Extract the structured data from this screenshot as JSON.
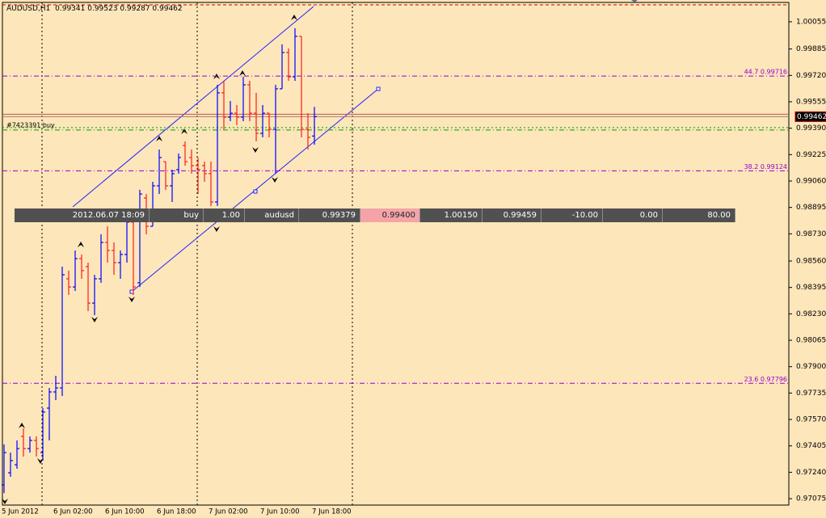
{
  "chart_data": {
    "type": "ohlc",
    "symbol": "AUDUSD,H1",
    "categories": [
      "5 Jun 2012",
      null,
      null,
      null,
      null,
      null,
      null,
      null,
      "6 Jun 02:00",
      null,
      null,
      null,
      null,
      null,
      null,
      null,
      "6 Jun 10:00",
      null,
      null,
      null,
      null,
      null,
      null,
      null,
      "6 Jun 18:00",
      null,
      null,
      null,
      null,
      null,
      null,
      null,
      "7 Jun 02:00",
      null,
      null,
      null,
      null,
      null,
      null,
      null,
      "7 Jun 10:00",
      null,
      null,
      null,
      null,
      null,
      null,
      null,
      "7 Jun 18:00"
    ],
    "open": [
      0.97161,
      0.97237,
      0.97287,
      0.97464,
      0.97388,
      0.97439,
      0.97363,
      0.97641,
      0.97742,
      0.97767,
      0.98449,
      0.98398,
      0.98575,
      0.98525,
      0.98297,
      0.98449,
      0.98676,
      0.98626,
      0.9855,
      0.98601,
      0.98803,
      0.98424,
      0.98954,
      0.98777,
      0.9903,
      0.99181,
      0.9903,
      0.99131,
      0.99282,
      0.99207,
      0.99156,
      0.99156,
      0.99106,
      0.98929,
      0.99611,
      0.99459,
      0.99484,
      0.99459,
      0.99661,
      0.99484,
      0.99358,
      0.99484,
      0.99383,
      0.99636,
      0.99863,
      0.99711,
      0.99964,
      0.99383,
      0.99341
    ],
    "high": [
      0.97414,
      0.97363,
      0.97439,
      0.97515,
      0.97464,
      0.97464,
      0.97641,
      0.97767,
      0.97843,
      0.98525,
      0.985,
      0.98626,
      0.98601,
      0.9855,
      0.98474,
      0.98727,
      0.98777,
      0.98676,
      0.98626,
      0.98828,
      0.98853,
      0.99005,
      0.98979,
      0.99055,
      0.99257,
      0.99181,
      0.99131,
      0.99232,
      0.99308,
      0.99257,
      0.99207,
      0.99181,
      0.99181,
      0.99661,
      0.99686,
      0.9956,
      0.99535,
      0.99711,
      0.99686,
      0.99611,
      0.99535,
      0.99484,
      0.99661,
      0.99914,
      0.99888,
      1.00015,
      0.99964,
      0.99484,
      0.99523
    ],
    "low": [
      0.9711,
      0.97212,
      0.97262,
      0.97338,
      0.97363,
      0.97338,
      0.97313,
      0.97439,
      0.97691,
      0.97717,
      0.98348,
      0.98373,
      0.98449,
      0.98247,
      0.98222,
      0.98424,
      0.9855,
      0.98474,
      0.98449,
      0.9855,
      0.98348,
      0.98398,
      0.98727,
      0.98777,
      0.98979,
      0.99005,
      0.98929,
      0.99106,
      0.99156,
      0.99106,
      0.98979,
      0.99055,
      0.98904,
      0.98904,
      0.99383,
      0.99434,
      0.99409,
      0.99434,
      0.99434,
      0.99308,
      0.99333,
      0.99333,
      0.99106,
      0.99636,
      0.99686,
      0.99686,
      0.99333,
      0.99257,
      0.99287
    ],
    "close": [
      0.97363,
      0.97313,
      0.97388,
      0.97388,
      0.97439,
      0.97388,
      0.97616,
      0.97742,
      0.97767,
      0.98474,
      0.98398,
      0.98575,
      0.985,
      0.98297,
      0.98449,
      0.98676,
      0.98626,
      0.9855,
      0.98601,
      0.98803,
      0.98398,
      0.98979,
      0.98777,
      0.9903,
      0.99207,
      0.9903,
      0.99106,
      0.99207,
      0.99181,
      0.99156,
      0.99131,
      0.99106,
      0.98929,
      0.99611,
      0.99459,
      0.99484,
      0.99459,
      0.99661,
      0.99484,
      0.99358,
      0.99484,
      0.99383,
      0.99636,
      0.99863,
      0.99711,
      0.99964,
      0.99383,
      0.99333,
      0.99462
    ],
    "bull_color": "#0000ff",
    "bear_color": "#ff1a1a",
    "ylim": [
      0.97035,
      1.00176
    ],
    "yticks": [
      1.00055,
      0.99885,
      {
        "value": 0.9972,
        "label": "0.99720"
      },
      0.99555,
      {
        "value": 0.9939,
        "label": "0.99390"
      },
      0.99225,
      {
        "value": 0.9906,
        "label": "0.99060"
      },
      0.98895,
      {
        "value": 0.9873,
        "label": "0.98730"
      },
      {
        "value": 0.9856,
        "label": "0.98560"
      },
      0.98395,
      {
        "value": 0.9823,
        "label": "0.98230"
      },
      0.98065,
      {
        "value": 0.979,
        "label": "0.97900"
      },
      0.97735,
      {
        "value": 0.9757,
        "label": "0.97570"
      },
      0.97405,
      {
        "value": 0.9724,
        "label": "0.97240"
      },
      0.97075
    ],
    "fib_levels": [
      {
        "value": 0.99716,
        "label": "44.7 0.99716"
      },
      {
        "value": 0.99124,
        "label": "38.2 0.99124"
      },
      {
        "value": 0.97796,
        "label": "23.6 0.97796"
      }
    ],
    "fib_color": "#9400d3",
    "bid": 0.99462,
    "order": {
      "label": "#7423391 buy",
      "price": 0.99379,
      "color": "#00a000"
    }
  },
  "trade_row": [
    "2012.06.07 18:09",
    "buy",
    "1.00",
    "audusd",
    "0.99379",
    "0.99400",
    "1.00150",
    "0.99459",
    "-10.00",
    "0.00",
    "80.00"
  ]
}
